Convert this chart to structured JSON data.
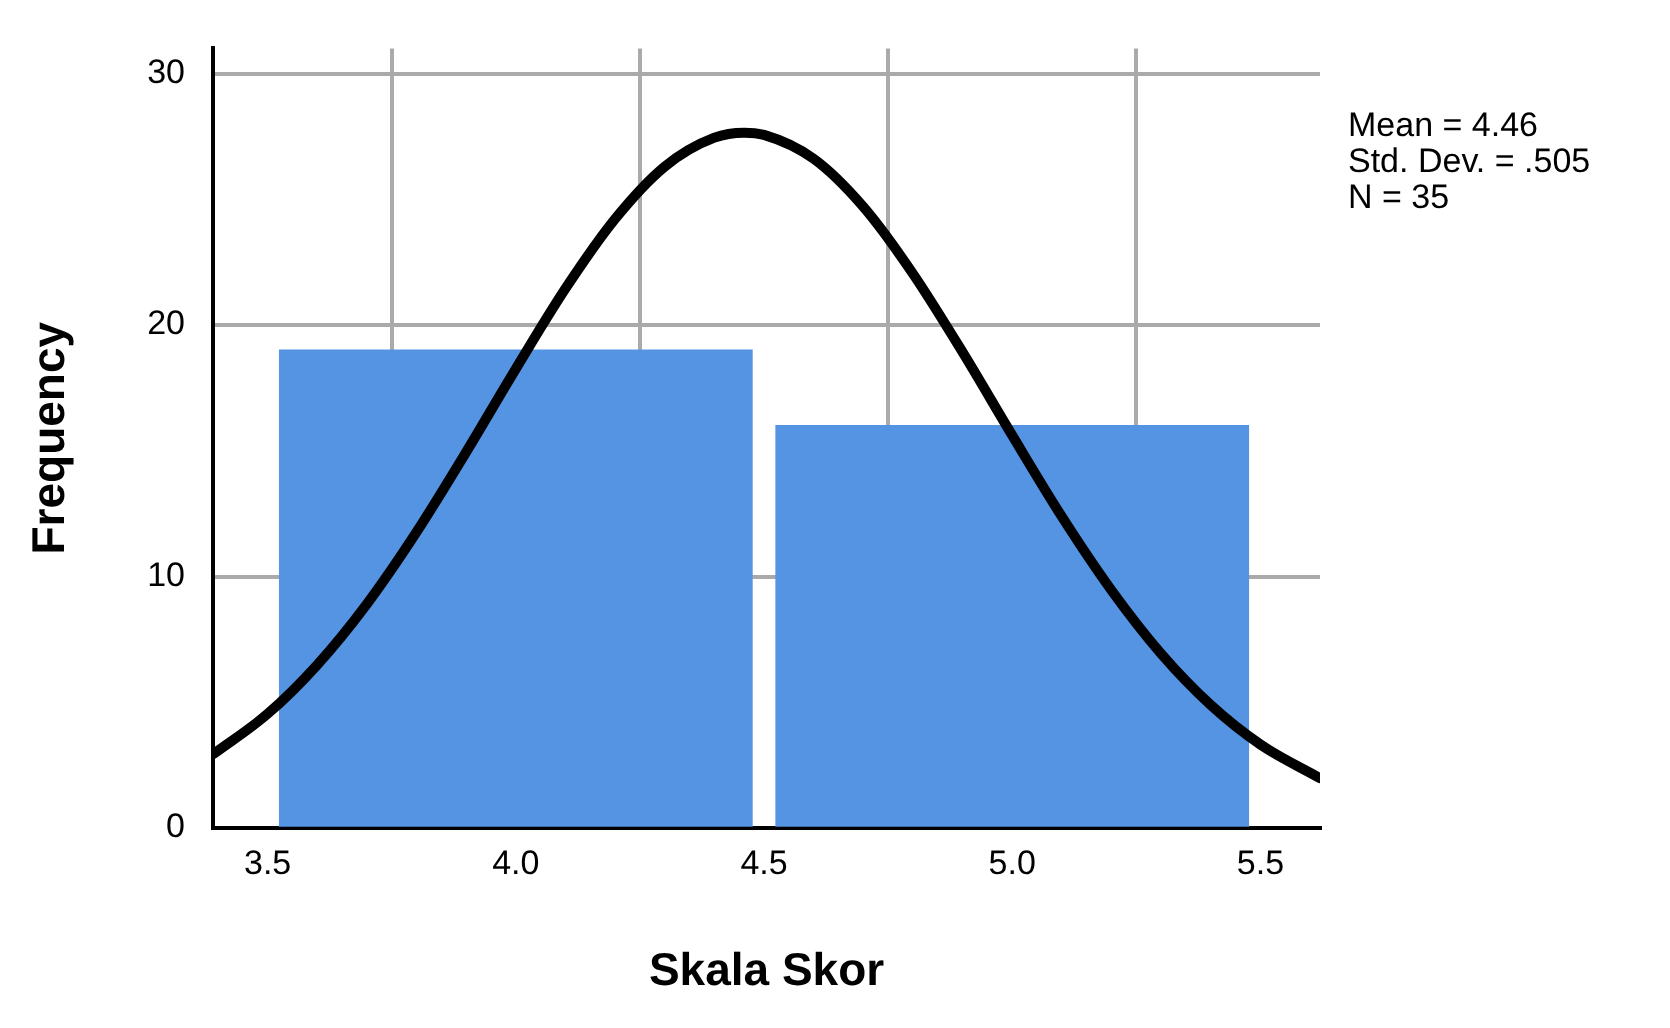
{
  "chart_data": {
    "type": "histogram",
    "xlabel": "Skala Skor",
    "ylabel": "Frequency",
    "bins": [
      3.5,
      4.5,
      5.5
    ],
    "values": [
      19,
      16
    ],
    "color": "#5494e3",
    "xlim": [
      3.39,
      5.62
    ],
    "xticks": [
      3.5,
      {
        "value": 4,
        "label": "4.0"
      },
      4.5,
      {
        "value": 5,
        "label": "5.0"
      },
      5.5
    ],
    "ylim": [
      0,
      31
    ],
    "yticks": [
      0,
      10,
      20,
      30
    ],
    "grid": true,
    "legend": false,
    "series": [
      {
        "type": "line",
        "color": "#000000",
        "marker": "none",
        "line_style": "solid",
        "x": [
          3.39,
          3.5,
          3.6,
          3.7,
          3.8,
          3.9,
          4.0,
          4.1,
          4.2,
          4.3,
          4.4,
          4.46,
          4.5,
          4.6,
          4.7,
          4.8,
          4.9,
          5.0,
          5.1,
          5.2,
          5.3,
          5.4,
          5.5,
          5.62
        ],
        "values": [
          2.93,
          4.54,
          6.49,
          8.91,
          11.77,
          14.95,
          18.26,
          21.45,
          24.22,
          26.3,
          27.45,
          27.65,
          27.56,
          26.61,
          24.7,
          22.04,
          18.92,
          15.61,
          12.38,
          9.45,
          6.93,
          4.89,
          3.32,
          1.98
        ]
      }
    ],
    "annotations": [
      "Mean = 4.46",
      "Std. Dev. = .505",
      "N = 35"
    ]
  }
}
